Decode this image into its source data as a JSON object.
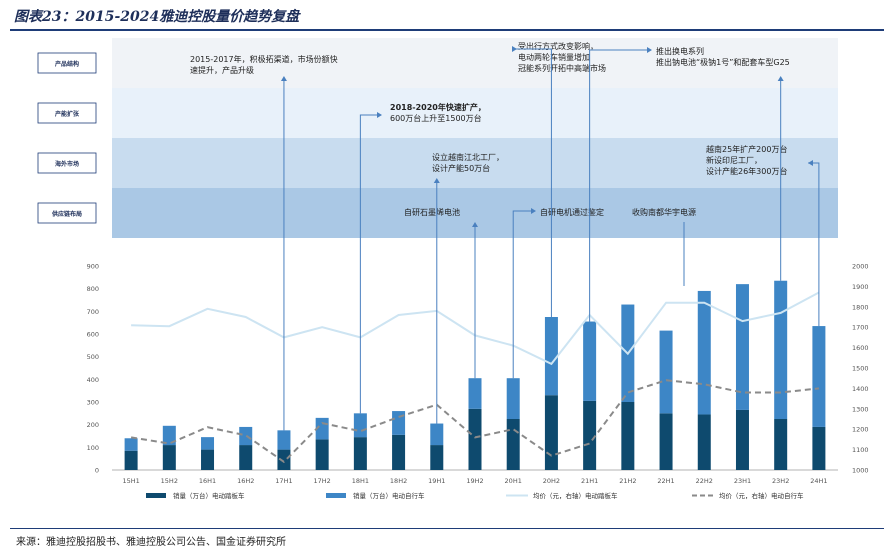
{
  "figure": {
    "title": "图表23：2015-2024雅迪控股量价趋势复盘",
    "source": "来源：雅迪控股招股书、雅迪控股公司公告、国金证券研究所"
  },
  "lanes": [
    {
      "label": "产品结构"
    },
    {
      "label": "产能扩张"
    },
    {
      "label": "海外市场"
    },
    {
      "label": "供应链布局"
    }
  ],
  "annotations": [
    {
      "lines": [
        "2015-2017年，积极拓渠道，市场份额快",
        "速提升，产品升级"
      ],
      "bold": []
    },
    {
      "lines": [
        "2018-2020年快速扩产，",
        "600万台上升至1500万台"
      ],
      "bold": [
        "2018-2020年快速扩产，"
      ]
    },
    {
      "lines": [
        "设立越南江北工厂，",
        "设计产能50万台"
      ],
      "bold": []
    },
    {
      "lines": [
        "自研石墨烯电池"
      ],
      "bold": []
    },
    {
      "lines": [
        "受出行方式改变影响，",
        "电动两轮车销量增加",
        "冠能系列开拓中高端市场"
      ],
      "bold": []
    },
    {
      "lines": [
        "自研电机通过鉴定"
      ],
      "bold": []
    },
    {
      "lines": [
        "推出换电系列",
        "推出钠电池“极钠1号”和配套车型G25"
      ],
      "bold": []
    },
    {
      "lines": [
        "收购南都华宇电源"
      ],
      "bold": []
    },
    {
      "lines": [
        "越南25年扩产200万台",
        "新设印尼工厂，",
        "设计产能26年300万台"
      ],
      "bold": []
    }
  ],
  "chart_data": {
    "type": "bar",
    "categories": [
      "15H1",
      "15H2",
      "16H1",
      "16H2",
      "17H1",
      "17H2",
      "18H1",
      "18H2",
      "19H1",
      "19H2",
      "20H1",
      "20H2",
      "21H1",
      "21H2",
      "22H1",
      "22H2",
      "23H1",
      "23H2",
      "24H1"
    ],
    "series": [
      {
        "name": "销量（万台）电动踏板车",
        "type": "bar-stacked",
        "axis": "left",
        "color": "#0e4a6e",
        "values": [
          85,
          110,
          90,
          110,
          90,
          135,
          145,
          155,
          110,
          270,
          225,
          330,
          305,
          300,
          250,
          245,
          265,
          225,
          190
        ]
      },
      {
        "name": "销量（万台）电动自行车",
        "type": "bar-stacked",
        "axis": "left",
        "color": "#3d86c6",
        "values": [
          55,
          85,
          55,
          80,
          85,
          95,
          105,
          105,
          95,
          135,
          180,
          345,
          350,
          430,
          365,
          545,
          555,
          610,
          445
        ]
      },
      {
        "name": "均价（元，右轴）电动踏板车",
        "type": "line",
        "axis": "right",
        "color": "#cde4f2",
        "dash": "solid",
        "values": [
          1710,
          1705,
          1790,
          1750,
          1650,
          1700,
          1650,
          1760,
          1780,
          1660,
          1610,
          1520,
          1760,
          1570,
          1820,
          1820,
          1730,
          1770,
          1870
        ]
      },
      {
        "name": "均价（元，右轴）电动自行车",
        "type": "line",
        "axis": "right",
        "color": "#8a8a8a",
        "dash": "dashed",
        "values": [
          1160,
          1130,
          1210,
          1170,
          1040,
          1230,
          1190,
          1260,
          1320,
          1160,
          1200,
          1070,
          1130,
          1380,
          1440,
          1420,
          1380,
          1380,
          1400
        ]
      }
    ],
    "ylim": [
      0,
      900
    ],
    "yticks": [
      0,
      100,
      200,
      300,
      400,
      500,
      600,
      700,
      800,
      900
    ],
    "y2lim": [
      1000,
      2000
    ],
    "y2ticks": [
      1000,
      1100,
      1200,
      1300,
      1400,
      1500,
      1600,
      1700,
      1800,
      1900,
      2000
    ],
    "legend_position": "bottom",
    "grid": false
  }
}
